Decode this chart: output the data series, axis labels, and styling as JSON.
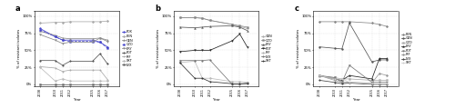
{
  "years": [
    2008,
    2010,
    2011,
    2012,
    2015,
    2016,
    2017
  ],
  "panel_a": {
    "title": "a",
    "ylabel": "% of resistant isolates",
    "series": {
      "FOX": {
        "vals": [
          82,
          70,
          65,
          65,
          65,
          62,
          55
        ],
        "color": "#4444cc",
        "marker": "o",
        "ls": "-"
      },
      "PEN": {
        "vals": [
          90,
          91,
          91,
          92,
          92,
          92,
          93
        ],
        "color": "#aaaaaa",
        "marker": "D",
        "ls": "-"
      },
      "GEN": {
        "vals": [
          78,
          72,
          68,
          67,
          67,
          68,
          65
        ],
        "color": "#888888",
        "marker": "^",
        "ls": "-"
      },
      "CZO": {
        "vals": [
          80,
          70,
          65,
          63,
          63,
          62,
          53
        ],
        "color": "#4444cc",
        "marker": "s",
        "ls": "--"
      },
      "ERY": {
        "vals": [
          73,
          65,
          60,
          62,
          62,
          68,
          63
        ],
        "color": "#888888",
        "marker": "v",
        "ls": "-"
      },
      "FOT": {
        "vals": [
          35,
          35,
          28,
          34,
          34,
          45,
          30
        ],
        "color": "#555555",
        "marker": "p",
        "ls": "-"
      },
      "RIF": {
        "vals": [
          26,
          24,
          19,
          21,
          21,
          21,
          7
        ],
        "color": "#aaaaaa",
        "marker": "*",
        "ls": "-"
      },
      "SXT": {
        "vals": [
          25,
          5,
          8,
          5,
          5,
          5,
          5
        ],
        "color": "#bbbbbb",
        "marker": "D",
        "ls": "-"
      },
      "LVX": {
        "vals": [
          0,
          0,
          0,
          0,
          0,
          0,
          0
        ],
        "color": "#666666",
        "marker": "s",
        "ls": "-"
      }
    },
    "legend_order": [
      "FOX",
      "PEN",
      "GEN",
      "CZO",
      "ERY",
      "FOT",
      "RIF",
      "SXT",
      "LVX"
    ]
  },
  "panel_b": {
    "title": "b",
    "ylabel": "% of resistant isolates",
    "series": {
      "GEN": {
        "vals": [
          98,
          98,
          97,
          94,
          88,
          85,
          82
        ],
        "color": "#aaaaaa",
        "marker": "o",
        "ls": "-"
      },
      "CZO": {
        "vals": [
          98,
          98,
          97,
          94,
          88,
          86,
          84
        ],
        "color": "#888888",
        "marker": "s",
        "ls": "-"
      },
      "ERY": {
        "vals": [
          84,
          83,
          84,
          85,
          86,
          84,
          79
        ],
        "color": "#555555",
        "marker": "^",
        "ls": "-"
      },
      "FOT": {
        "vals": [
          48,
          50,
          50,
          50,
          64,
          74,
          55
        ],
        "color": "#222222",
        "marker": "v",
        "ls": "-"
      },
      "RIF": {
        "vals": [
          32,
          34,
          9,
          9,
          4,
          4,
          3
        ],
        "color": "#bbbbbb",
        "marker": "D",
        "ls": "-"
      },
      "LVX": {
        "vals": [
          35,
          35,
          35,
          36,
          0,
          0,
          2
        ],
        "color": "#777777",
        "marker": "p",
        "ls": "-"
      },
      "SXT": {
        "vals": [
          32,
          9,
          9,
          4,
          1,
          1,
          1
        ],
        "color": "#333333",
        "marker": "*",
        "ls": "-"
      }
    },
    "legend_order": [
      "GEN",
      "CZO",
      "ERY",
      "FOT",
      "RIF",
      "LVX",
      "SXT"
    ]
  },
  "panel_c": {
    "title": "c",
    "ylabel": "% of resistant isolates",
    "series": {
      "PEN": {
        "vals": [
          92,
          92,
          92,
          92,
          90,
          88,
          85
        ],
        "color": "#888888",
        "marker": "D",
        "ls": "-"
      },
      "GEN": {
        "vals": [
          55,
          53,
          52,
          90,
          33,
          36,
          36
        ],
        "color": "#555555",
        "marker": "o",
        "ls": "-"
      },
      "CZO": {
        "vals": [
          12,
          10,
          8,
          8,
          6,
          6,
          6
        ],
        "color": "#aaaaaa",
        "marker": "s",
        "ls": "-"
      },
      "ERY": {
        "vals": [
          13,
          8,
          6,
          13,
          8,
          38,
          38
        ],
        "color": "#222222",
        "marker": "^",
        "ls": "-"
      },
      "FOT": {
        "vals": [
          13,
          10,
          3,
          28,
          3,
          3,
          3
        ],
        "color": "#777777",
        "marker": "v",
        "ls": "-"
      },
      "RIF": {
        "vals": [
          13,
          6,
          3,
          3,
          2,
          16,
          13
        ],
        "color": "#999999",
        "marker": "D",
        "ls": "-"
      },
      "LVX": {
        "vals": [
          6,
          3,
          1,
          2,
          0,
          0,
          0
        ],
        "color": "#444444",
        "marker": "p",
        "ls": "-"
      },
      "SXT": {
        "vals": [
          13,
          8,
          8,
          3,
          1,
          1,
          1
        ],
        "color": "#cccccc",
        "marker": "*",
        "ls": "-"
      }
    },
    "legend_order": [
      "PEN",
      "GEN",
      "CZO",
      "ERY",
      "FOT",
      "RIF",
      "LVX",
      "SXT"
    ]
  }
}
